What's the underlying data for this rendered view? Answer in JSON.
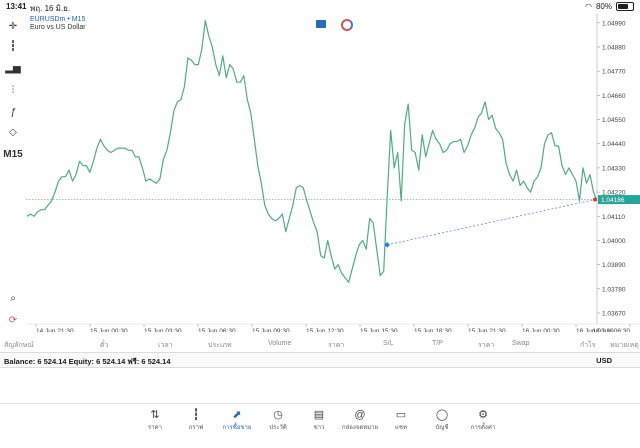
{
  "status": {
    "time": "13:41",
    "date": "พฤ. 16 มิ.ย.",
    "battery": "80%",
    "battery_level": 0.8
  },
  "toolbar": {
    "items": [
      "crosshair-icon",
      "candles-icon",
      "bar-chart-icon",
      "indicators-icon",
      "function-icon",
      "objects-icon"
    ],
    "timeframe": "M15",
    "bottom": [
      "search-chart-icon",
      "refresh-icon"
    ]
  },
  "symbol": {
    "name": "EURUSDm",
    "timeframe": "M15",
    "label": "EURUSDm • M15",
    "description": "Euro vs US Dollar"
  },
  "colors": {
    "line": "#4caf7d",
    "grid": "#eeeeee",
    "price_tag": "#26a69a",
    "dash_green": "#5aa57a",
    "trade_dash": "#3b84d9"
  },
  "chart_data": {
    "type": "line",
    "yticks": [
      "1.04990",
      "1.04880",
      "1.04770",
      "1.04660",
      "1.04550",
      "1.04440",
      "1.04330",
      "1.04220",
      "1.04110",
      "1.04000",
      "1.03890",
      "1.03780",
      "1.03670"
    ],
    "ylim": [
      1.0362,
      1.0503
    ],
    "current_price": "1.04186",
    "current_value": 1.04186,
    "xticks": [
      "14 Jun 21:30",
      "15 Jun 00:30",
      "15 Jun 03:30",
      "15 Jun 06:30",
      "15 Jun 09:30",
      "15 Jun 12:30",
      "15 Jun 15:30",
      "15 Jun 18:30",
      "15 Jun 21:30",
      "16 Jun 00:30",
      "16 Jun 03:30",
      "16 Jun 06:30"
    ],
    "trade_entry": 1.0398,
    "values": [
      1.0411,
      1.0412,
      1.0411,
      1.0413,
      1.0414,
      1.0414,
      1.0416,
      1.0418,
      1.0422,
      1.0427,
      1.0429,
      1.0429,
      1.0432,
      1.0427,
      1.043,
      1.0436,
      1.0434,
      1.0434,
      1.0431,
      1.0436,
      1.0442,
      1.0446,
      1.0443,
      1.0441,
      1.044,
      1.0441,
      1.0442,
      1.0442,
      1.0442,
      1.0441,
      1.0441,
      1.0438,
      1.0438,
      1.0433,
      1.0427,
      1.0428,
      1.0427,
      1.0426,
      1.0428,
      1.0437,
      1.0441,
      1.0449,
      1.0459,
      1.0463,
      1.0464,
      1.047,
      1.0483,
      1.0482,
      1.048,
      1.048,
      1.0487,
      1.05,
      1.0493,
      1.0488,
      1.048,
      1.0475,
      1.0484,
      1.0474,
      1.048,
      1.0478,
      1.0472,
      1.0472,
      1.0475,
      1.0464,
      1.0458,
      1.0446,
      1.0434,
      1.0426,
      1.0416,
      1.0412,
      1.041,
      1.0409,
      1.041,
      1.0412,
      1.0404,
      1.041,
      1.0416,
      1.0424,
      1.0425,
      1.0424,
      1.0418,
      1.0413,
      1.0408,
      1.0404,
      1.0393,
      1.0392,
      1.04,
      1.0393,
      1.0387,
      1.0389,
      1.0385,
      1.0383,
      1.0381,
      1.0387,
      1.0393,
      1.0398,
      1.04,
      1.0396,
      1.041,
      1.0408,
      1.0396,
      1.0384,
      1.0386,
      1.042,
      1.045,
      1.0433,
      1.044,
      1.0418,
      1.0453,
      1.0462,
      1.0441,
      1.044,
      1.0432,
      1.0448,
      1.0438,
      1.0444,
      1.045,
      1.0446,
      1.0444,
      1.044,
      1.0441,
      1.0444,
      1.0445,
      1.0445,
      1.0446,
      1.044,
      1.0443,
      1.0448,
      1.0451,
      1.0456,
      1.0458,
      1.0463,
      1.0455,
      1.0457,
      1.0451,
      1.0449,
      1.0446,
      1.0435,
      1.043,
      1.0427,
      1.0432,
      1.0425,
      1.0427,
      1.0424,
      1.0422,
      1.0427,
      1.0429,
      1.0433,
      1.0444,
      1.0448,
      1.0449,
      1.0443,
      1.0443,
      1.0434,
      1.043,
      1.0433,
      1.043,
      1.0427,
      1.0418,
      1.0433,
      1.0426,
      1.043,
      1.0422,
      1.0418
    ]
  },
  "columns": [
    "สัญลักษณ์",
    "ตั๋ว",
    "เวลา",
    "ประเภท",
    "Volume",
    "ราคา",
    "S/L",
    "T/P",
    "ราคา",
    "Swap",
    "กำไร",
    "หมายเหตุ"
  ],
  "account": {
    "summary": "Balance: 6 524.14 Equity: 6 524.14 ฟรี: 6 524.14",
    "currency": "USD"
  },
  "tabs": [
    {
      "label": "ราคา",
      "icon": "quotes-icon"
    },
    {
      "label": "กราฟ",
      "icon": "chart-icon"
    },
    {
      "label": "การซื้อขาย",
      "icon": "trade-icon",
      "active": true
    },
    {
      "label": "ประวัติ",
      "icon": "history-icon"
    },
    {
      "label": "ข่าว",
      "icon": "news-icon"
    },
    {
      "label": "กล่องจดหมาย",
      "icon": "mailbox-icon"
    },
    {
      "label": "แชท",
      "icon": "chat-icon"
    },
    {
      "label": "บัญชี",
      "icon": "account-icon"
    },
    {
      "label": "การตั้งค่า",
      "icon": "settings-icon"
    }
  ]
}
